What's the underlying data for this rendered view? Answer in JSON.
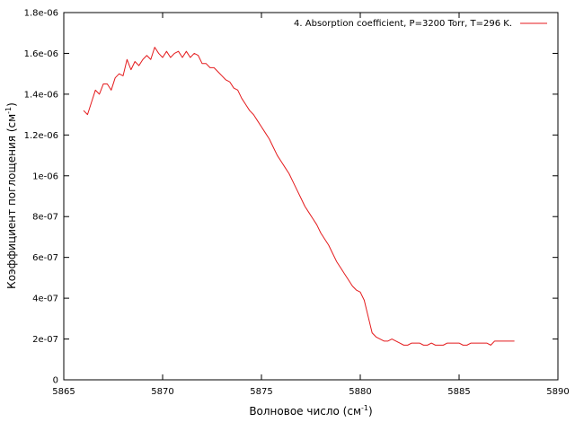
{
  "chart_data": {
    "type": "line",
    "xlabel": "Волновое число (см",
    "xlabel_sup": "-1",
    "xlabel_end": ")",
    "ylabel": "Коэффициент поглощения (см",
    "ylabel_sup": "-1",
    "ylabel_end": ")",
    "xlim": [
      5865,
      5890
    ],
    "ylim": [
      0,
      1.8e-06
    ],
    "x_ticks": [
      5865,
      5870,
      5875,
      5880,
      5885,
      5890
    ],
    "x_tick_labels": [
      "5865",
      "5870",
      "5875",
      "5880",
      "5885",
      "5890"
    ],
    "y_ticks": [
      0,
      2e-07,
      4e-07,
      6e-07,
      8e-07,
      1e-06,
      1.2e-06,
      1.4e-06,
      1.6e-06,
      1.8e-06
    ],
    "y_tick_labels": [
      "0",
      "2e-07",
      "4e-07",
      "6e-07",
      "8e-07",
      "1e-06",
      "1.2e-06",
      "1.4e-06",
      "1.6e-06",
      "1.8e-06"
    ],
    "grid": false,
    "legend_position": "top-right",
    "series": [
      {
        "name": "4. Absorption coefficient, P=3200 Torr, T=296 K.",
        "color": "#e41a1c",
        "x": [
          5866.0,
          5866.2,
          5866.4,
          5866.6,
          5866.8,
          5867.0,
          5867.2,
          5867.4,
          5867.6,
          5867.8,
          5868.0,
          5868.2,
          5868.4,
          5868.6,
          5868.8,
          5869.0,
          5869.2,
          5869.4,
          5869.6,
          5869.8,
          5870.0,
          5870.2,
          5870.4,
          5870.6,
          5870.8,
          5871.0,
          5871.2,
          5871.4,
          5871.6,
          5871.8,
          5872.0,
          5872.2,
          5872.4,
          5872.6,
          5872.8,
          5873.0,
          5873.2,
          5873.4,
          5873.6,
          5873.8,
          5874.0,
          5874.2,
          5874.4,
          5874.6,
          5874.8,
          5875.0,
          5875.2,
          5875.4,
          5875.6,
          5875.8,
          5876.0,
          5876.2,
          5876.4,
          5876.6,
          5876.8,
          5877.0,
          5877.2,
          5877.4,
          5877.6,
          5877.8,
          5878.0,
          5878.2,
          5878.4,
          5878.6,
          5878.8,
          5879.0,
          5879.2,
          5879.4,
          5879.6,
          5879.8,
          5880.0,
          5880.2,
          5880.4,
          5880.6,
          5880.8,
          5881.0,
          5881.2,
          5881.4,
          5881.6,
          5881.8,
          5882.0,
          5882.2,
          5882.4,
          5882.6,
          5882.8,
          5883.0,
          5883.2,
          5883.4,
          5883.6,
          5883.8,
          5884.0,
          5884.2,
          5884.4,
          5884.6,
          5884.8,
          5885.0,
          5885.2,
          5885.4,
          5885.6,
          5885.8,
          5886.0,
          5886.2,
          5886.4,
          5886.6,
          5886.8,
          5887.0,
          5887.2,
          5887.4,
          5887.6,
          5887.8
        ],
        "y": [
          1.32e-06,
          1.3e-06,
          1.36e-06,
          1.42e-06,
          1.4e-06,
          1.45e-06,
          1.45e-06,
          1.42e-06,
          1.48e-06,
          1.5e-06,
          1.49e-06,
          1.57e-06,
          1.52e-06,
          1.56e-06,
          1.54e-06,
          1.57e-06,
          1.59e-06,
          1.57e-06,
          1.63e-06,
          1.6e-06,
          1.58e-06,
          1.61e-06,
          1.58e-06,
          1.6e-06,
          1.61e-06,
          1.58e-06,
          1.61e-06,
          1.58e-06,
          1.6e-06,
          1.59e-06,
          1.55e-06,
          1.55e-06,
          1.53e-06,
          1.53e-06,
          1.51e-06,
          1.49e-06,
          1.47e-06,
          1.46e-06,
          1.43e-06,
          1.42e-06,
          1.38e-06,
          1.35e-06,
          1.32e-06,
          1.3e-06,
          1.27e-06,
          1.24e-06,
          1.21e-06,
          1.18e-06,
          1.14e-06,
          1.1e-06,
          1.07e-06,
          1.04e-06,
          1.01e-06,
          9.7e-07,
          9.3e-07,
          8.9e-07,
          8.5e-07,
          8.2e-07,
          7.9e-07,
          7.6e-07,
          7.2e-07,
          6.9e-07,
          6.6e-07,
          6.2e-07,
          5.8e-07,
          5.5e-07,
          5.2e-07,
          4.9e-07,
          4.6e-07,
          4.4e-07,
          4.3e-07,
          3.9e-07,
          3.1e-07,
          2.3e-07,
          2.1e-07,
          2e-07,
          1.9e-07,
          1.9e-07,
          2e-07,
          1.9e-07,
          1.8e-07,
          1.7e-07,
          1.7e-07,
          1.8e-07,
          1.8e-07,
          1.8e-07,
          1.7e-07,
          1.7e-07,
          1.8e-07,
          1.7e-07,
          1.7e-07,
          1.7e-07,
          1.8e-07,
          1.8e-07,
          1.8e-07,
          1.8e-07,
          1.7e-07,
          1.7e-07,
          1.8e-07,
          1.8e-07,
          1.8e-07,
          1.8e-07,
          1.8e-07,
          1.7e-07,
          1.9e-07,
          1.9e-07,
          1.9e-07,
          1.9e-07,
          1.9e-07,
          1.9e-07
        ]
      }
    ]
  }
}
